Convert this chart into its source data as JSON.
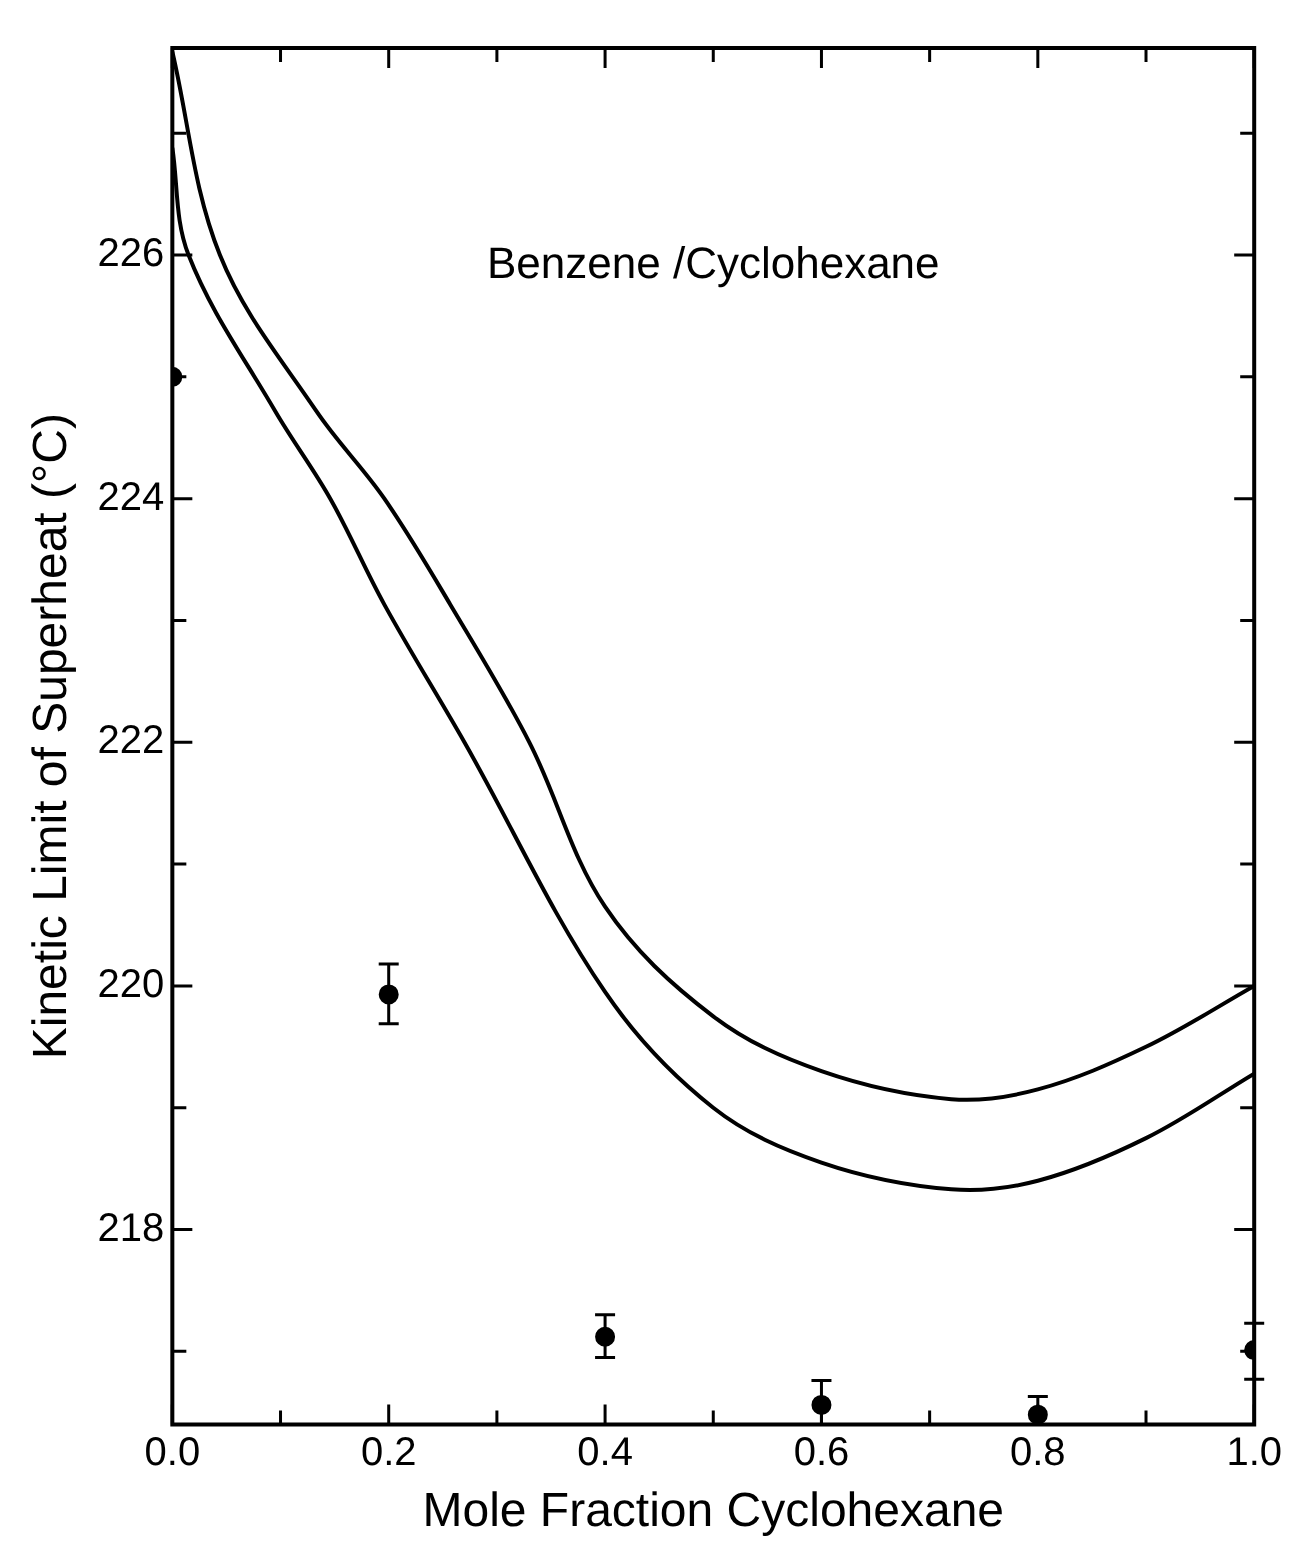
{
  "chart_data": {
    "type": "line",
    "xlabel": "Mole Fraction Cyclohexane",
    "ylabel": "Kinetic Limit of Superheat (°C)",
    "annotations": [
      "Benzene /Cyclohexane"
    ],
    "xlim": [
      0,
      1
    ],
    "xticks": [
      {
        "value": 0,
        "label": "0.0"
      },
      {
        "value": 0.1,
        "label": null
      },
      {
        "value": 0.2,
        "label": "0.2"
      },
      {
        "value": 0.3,
        "label": null
      },
      {
        "value": 0.4,
        "label": "0.4"
      },
      {
        "value": 0.5,
        "label": null
      },
      {
        "value": 0.6,
        "label": "0.6"
      },
      {
        "value": 0.7,
        "label": null
      },
      {
        "value": 0.8,
        "label": "0.8"
      },
      {
        "value": 0.9,
        "label": null
      },
      {
        "value": 1,
        "label": "1.0"
      }
    ],
    "ylim": [
      216.4,
      227.7
    ],
    "yticks": [
      {
        "value": 217,
        "label": null
      },
      218,
      {
        "value": 219,
        "label": null
      },
      220,
      {
        "value": 221,
        "label": null
      },
      222,
      {
        "value": 223,
        "label": null
      },
      224,
      {
        "value": 225,
        "label": null
      },
      226,
      {
        "value": 227,
        "label": null
      }
    ],
    "grid": false,
    "legend": false,
    "series": [
      {
        "color": "#000000",
        "marker": "none",
        "x": [
          0,
          0.044,
          0.133,
          0.196,
          0.257,
          0.33,
          0.4,
          0.5,
          0.6,
          0.72,
          0.8,
          0.9,
          1.0
        ],
        "values": [
          227.67,
          226,
          224.72,
          224,
          223.13,
          222,
          220.65,
          219.75,
          219.3,
          219.07,
          219.15,
          219.5,
          220.0
        ]
      },
      {
        "color": "#000000",
        "marker": "none",
        "x": [
          0,
          0.015,
          0.095,
          0.146,
          0.196,
          0.27,
          0.4,
          0.5,
          0.6,
          0.72,
          0.8,
          0.9,
          1.0
        ],
        "values": [
          226.88,
          226,
          224.72,
          224,
          223.13,
          222,
          219.95,
          219.0,
          218.55,
          218.33,
          218.4,
          218.75,
          219.28
        ]
      },
      {
        "type": "scatter",
        "color": "#000000",
        "marker": "circle",
        "x": [
          0,
          0.2,
          0.4,
          0.6,
          0.8,
          1.0
        ],
        "values": [
          225.0,
          219.93,
          217.12,
          216.56,
          216.48,
          217.01
        ],
        "errors": [
          null,
          [
            219.69,
            220.18
          ],
          [
            216.95,
            217.3
          ],
          [
            216.4,
            216.76
          ],
          [
            216.4,
            216.63
          ],
          [
            216.77,
            217.23
          ]
        ]
      }
    ]
  }
}
